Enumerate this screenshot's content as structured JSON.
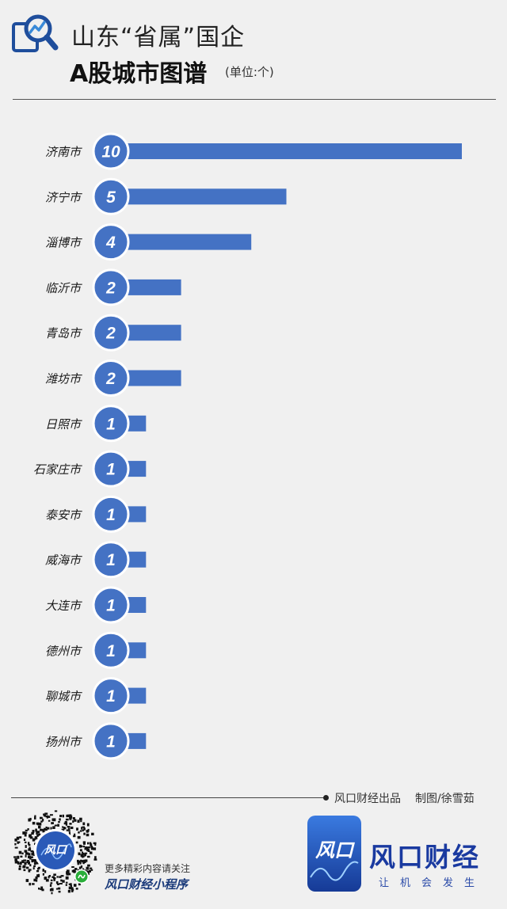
{
  "header": {
    "title_line1": "山东“省属”国企",
    "title_line2": "A股城市图谱",
    "unit": "(单位:个)",
    "icon": "chart-magnifier-icon"
  },
  "chart_data": {
    "type": "bar",
    "orientation": "horizontal",
    "categories": [
      "济南市",
      "济宁市",
      "淄博市",
      "临沂市",
      "青岛市",
      "潍坊市",
      "日照市",
      "石家庄市",
      "泰安市",
      "威海市",
      "大连市",
      "德州市",
      "聊城市",
      "扬州市"
    ],
    "values": [
      10,
      5,
      4,
      2,
      2,
      2,
      1,
      1,
      1,
      1,
      1,
      1,
      1,
      1
    ],
    "data_labels": [
      "10",
      "5",
      "4",
      "2",
      "2",
      "2",
      "1",
      "1",
      "1",
      "1",
      "1",
      "1",
      "1",
      "1"
    ],
    "xlim": [
      0,
      10
    ],
    "grid": false,
    "legend": "none",
    "colors": {
      "bar": "#4472c4",
      "badge_fill": "#4472c4",
      "badge_ring": "#ffffff"
    }
  },
  "footer": {
    "credit_source": "风口财经出品",
    "credit_author": "制图/徐雪茹",
    "promo_line1": "更多精彩内容请关注",
    "promo_line2": "风口财经小程序",
    "qr_logo_text": "风口",
    "brand_logo_text": "风口",
    "brand_name": "风口财经",
    "brand_slogan": "让机会发生"
  }
}
